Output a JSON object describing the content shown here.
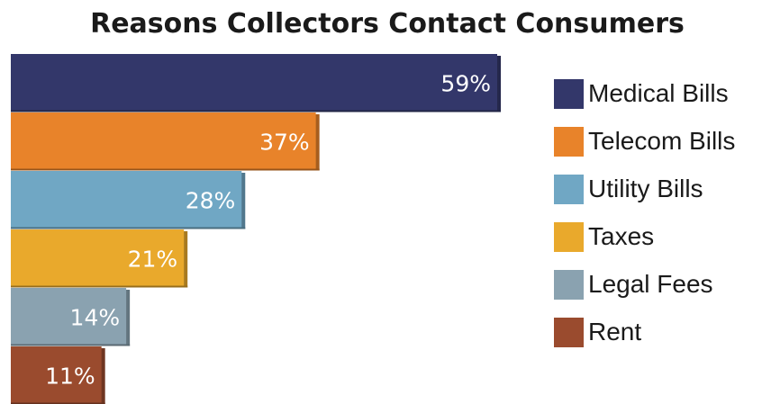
{
  "chart_data": {
    "type": "bar",
    "orientation": "horizontal",
    "title": "Reasons Collectors Contact Consumers",
    "categories": [
      "Medical Bills",
      "Telecom Bills",
      "Utility Bills",
      "Taxes",
      "Legal Fees",
      "Rent"
    ],
    "values": [
      59,
      37,
      28,
      21,
      14,
      11
    ],
    "value_labels": [
      "59%",
      "37%",
      "28%",
      "21%",
      "14%",
      "11%"
    ],
    "colors": [
      "#33376a",
      "#e8832a",
      "#70a7c4",
      "#e9a92c",
      "#8aa2b0",
      "#9a4b2e"
    ],
    "xlim": [
      0,
      59
    ],
    "grid": false,
    "legend": "right"
  }
}
